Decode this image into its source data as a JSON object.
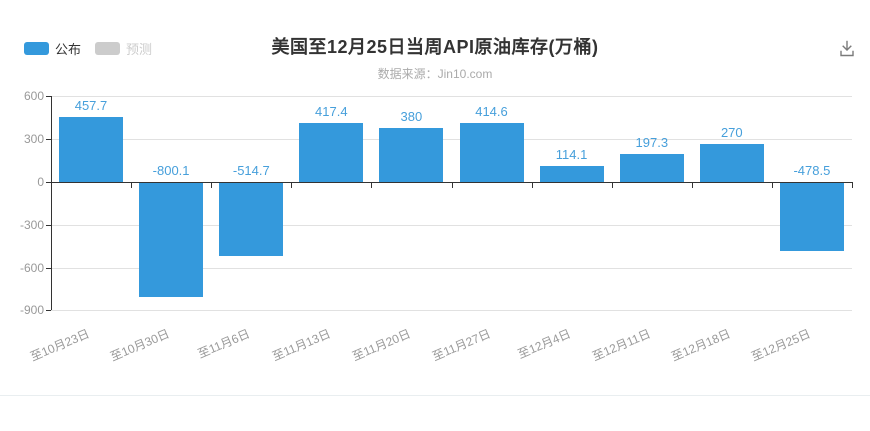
{
  "title": "美国至12月25日当周API原油库存(万桶)",
  "subtitle": "数据来源：Jin10.com",
  "legend": {
    "published": "公布",
    "forecast": "预测"
  },
  "toolbar": {
    "download_icon": "download-icon"
  },
  "colors": {
    "bar": "#3499DC",
    "value_label": "#469FDB",
    "forecast_swatch": "#CCCCCC",
    "axis": "#333333",
    "grid": "#E1E1E1",
    "tick_label": "#999999",
    "title": "#333333",
    "subtitle": "#AAAAAA"
  },
  "chart_data": {
    "type": "bar",
    "title": "美国至12月25日当周API原油库存(万桶)",
    "subtitle": "数据来源：Jin10.com",
    "categories": [
      "至10月23日",
      "至10月30日",
      "至11月6日",
      "至11月13日",
      "至11月20日",
      "至11月27日",
      "至12月4日",
      "至12月11日",
      "至12月18日",
      "至12月25日"
    ],
    "series": [
      {
        "name": "公布",
        "values": [
          457.7,
          -800.1,
          -514.7,
          417.4,
          380,
          414.6,
          114.1,
          197.3,
          270,
          -478.5
        ]
      },
      {
        "name": "预测",
        "values": []
      }
    ],
    "xlabel": "",
    "ylabel": "",
    "ylim": [
      -900,
      600
    ],
    "yticks": [
      600,
      300,
      0,
      -300,
      -600,
      -900
    ],
    "grid": true,
    "legend_position": "top-left",
    "x_label_rotation": -23
  }
}
